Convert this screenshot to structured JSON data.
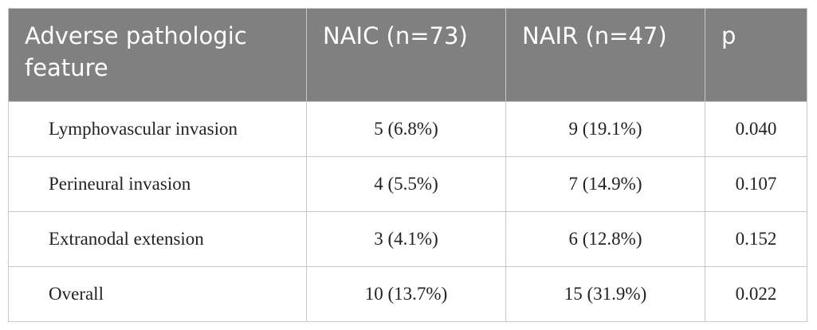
{
  "table": {
    "header": [
      "Adverse pathologic feature",
      "NAIC (n=73)",
      "NAIR (n=47)",
      "p"
    ],
    "rows": [
      [
        "Lymphovascular invasion",
        "5 (6.8%)",
        "9 (19.1%)",
        "0.040"
      ],
      [
        "Perineural invasion",
        "4 (5.5%)",
        "7 (14.9%)",
        "0.107"
      ],
      [
        "Extranodal extension",
        "3 (4.1%)",
        "6 (12.8%)",
        "0.152"
      ],
      [
        "Overall",
        "10 (13.7%)",
        "15 (31.9%)",
        "0.022"
      ]
    ]
  }
}
